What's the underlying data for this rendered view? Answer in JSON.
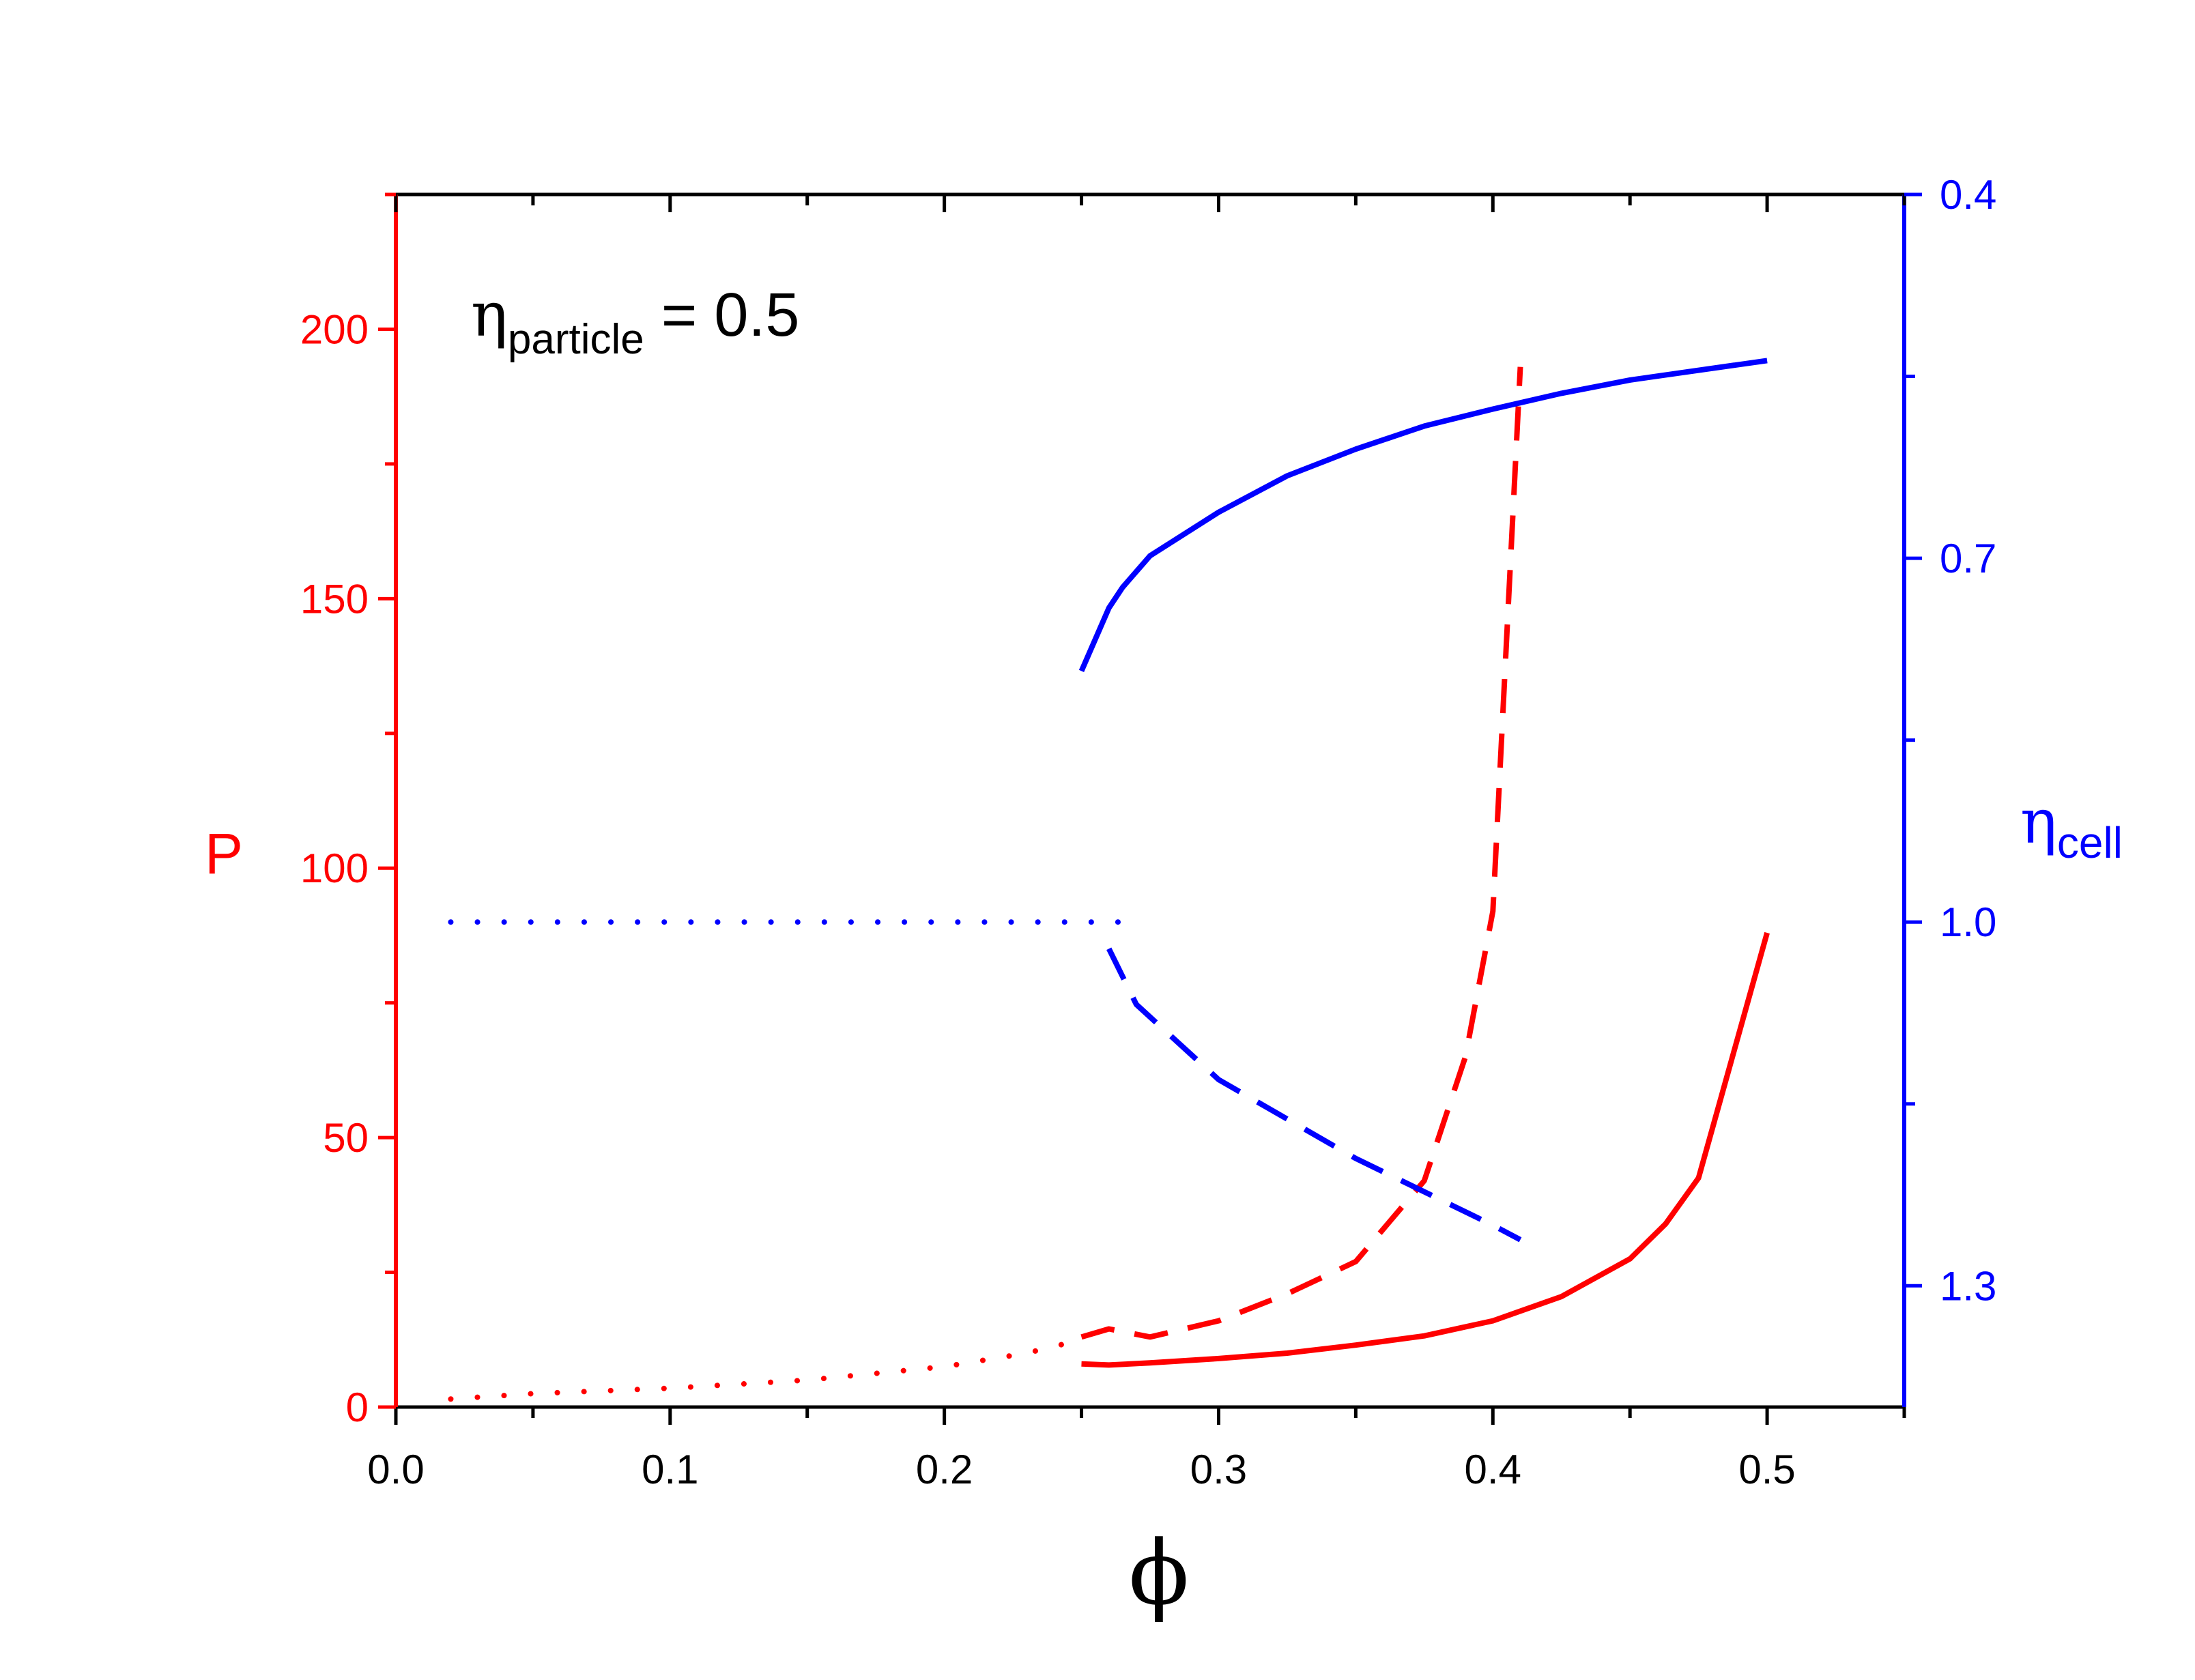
{
  "chart_data": {
    "type": "line",
    "annotation": {
      "symbol": "η",
      "subscript": "particle",
      "text": " = 0.5"
    },
    "xlabel": "ϕ",
    "ylabel_left": "P",
    "ylabel_right": {
      "symbol": "η",
      "subscript": "cell"
    },
    "xlim": [
      0.0,
      0.55
    ],
    "x_ticks": [
      0.0,
      0.1,
      0.2,
      0.3,
      0.4,
      0.5
    ],
    "x_tick_labels": [
      "0.0",
      "0.1",
      "0.2",
      "0.3",
      "0.4",
      "0.5"
    ],
    "ylim_left": [
      0,
      225
    ],
    "y_left_ticks": [
      0,
      50,
      100,
      150,
      200
    ],
    "y_left_tick_labels": [
      "0",
      "50",
      "100",
      "150",
      "200"
    ],
    "ylim_right": [
      1.4,
      0.4
    ],
    "y_right_reversed": true,
    "y_right_ticks": [
      0.4,
      0.7,
      1.0,
      1.3
    ],
    "y_right_tick_labels": [
      "0.4",
      "0.7",
      "1.0",
      "1.3"
    ],
    "grid": false,
    "colors": {
      "left_axis": "#ff0000",
      "right_axis": "#0000ff",
      "frame": "#000000"
    },
    "series": [
      {
        "axis": "left",
        "color": "#ff0000",
        "style": "dotted",
        "x": [
          0.02,
          0.05,
          0.1,
          0.15,
          0.2,
          0.23,
          0.25
        ],
        "y": [
          1.5,
          2.5,
          3.5,
          5,
          7.5,
          10,
          12.5
        ]
      },
      {
        "axis": "left",
        "color": "#ff0000",
        "style": "dashed",
        "x": [
          0.25,
          0.26,
          0.275,
          0.3,
          0.325,
          0.35,
          0.375,
          0.39,
          0.4,
          0.41
        ],
        "y": [
          13,
          14.5,
          13,
          16,
          21,
          27,
          42,
          65,
          92,
          193
        ]
      },
      {
        "axis": "left",
        "color": "#ff0000",
        "style": "solid",
        "x": [
          0.25,
          0.26,
          0.275,
          0.3,
          0.325,
          0.35,
          0.375,
          0.4,
          0.425,
          0.45,
          0.463,
          0.475,
          0.5
        ],
        "y": [
          8,
          7.8,
          8.2,
          9,
          10,
          11.5,
          13.2,
          16,
          20.5,
          27.5,
          34,
          42.5,
          88
        ]
      },
      {
        "axis": "right",
        "color": "#0000ff",
        "style": "solid",
        "x": [
          0.25,
          0.26,
          0.265,
          0.275,
          0.3,
          0.325,
          0.35,
          0.375,
          0.4,
          0.425,
          0.45,
          0.5
        ],
        "y": [
          0.793,
          0.741,
          0.724,
          0.698,
          0.662,
          0.632,
          0.61,
          0.591,
          0.577,
          0.564,
          0.553,
          0.537
        ]
      },
      {
        "axis": "right",
        "color": "#0000ff",
        "style": "dotted",
        "x": [
          0.02,
          0.1,
          0.2,
          0.265
        ],
        "y": [
          1.0,
          1.0,
          1.0,
          1.0
        ]
      },
      {
        "axis": "right",
        "color": "#0000ff",
        "style": "dashed",
        "x": [
          0.26,
          0.27,
          0.3,
          0.35,
          0.4,
          0.41
        ],
        "y": [
          1.022,
          1.068,
          1.13,
          1.195,
          1.25,
          1.262
        ]
      }
    ]
  }
}
